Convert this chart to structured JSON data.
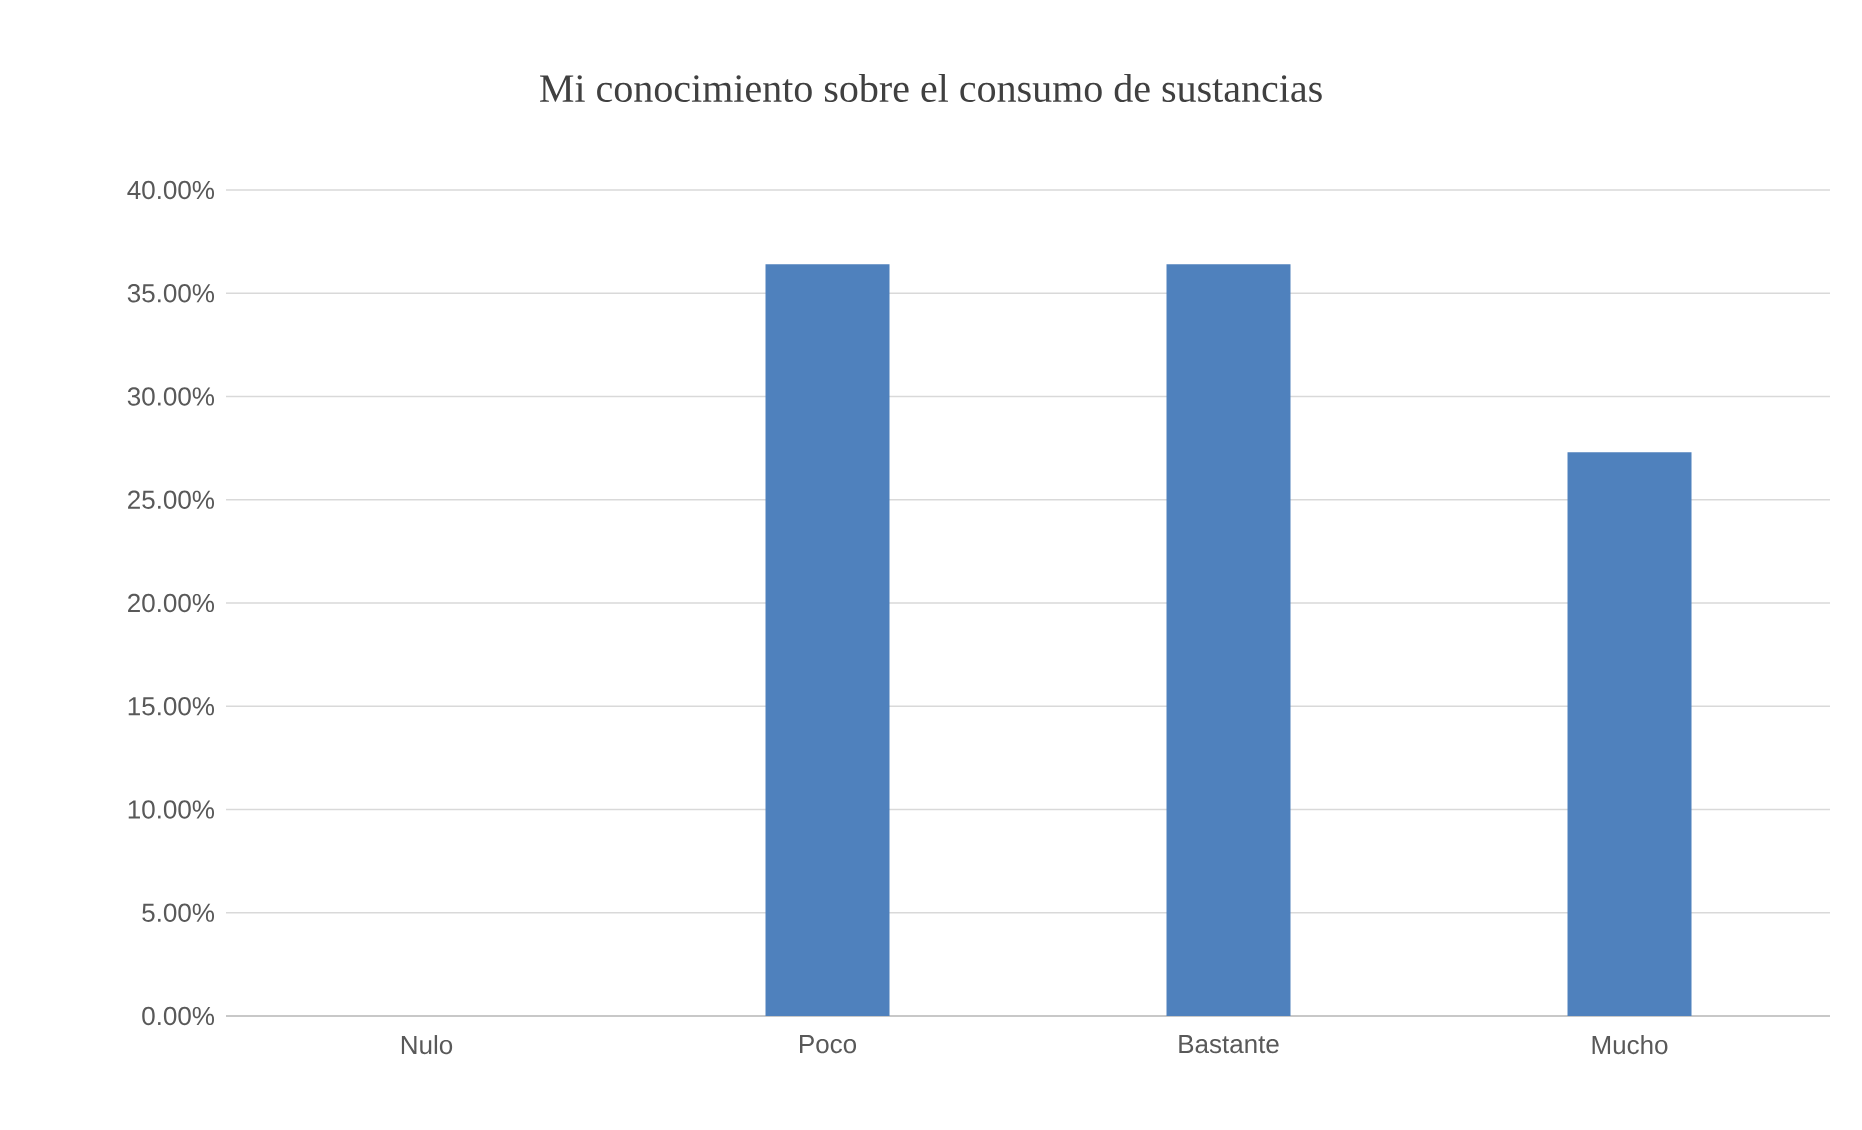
{
  "chart_data": {
    "type": "bar",
    "title": "Mi conocimiento sobre el consumo de sustancias",
    "categories": [
      "Nulo",
      "Poco",
      "Bastante",
      "Mucho"
    ],
    "values": [
      0,
      36.4,
      36.4,
      27.3
    ],
    "color": "#4f81bd",
    "ylim": [
      0,
      40
    ],
    "yticks": [
      {
        "value": 0,
        "label": "0.00%"
      },
      {
        "value": 5,
        "label": "5.00%"
      },
      {
        "value": 10,
        "label": "10.00%"
      },
      {
        "value": 15,
        "label": "15.00%"
      },
      {
        "value": 20,
        "label": "20.00%"
      },
      {
        "value": 25,
        "label": "25.00%"
      },
      {
        "value": 30,
        "label": "30.00%"
      },
      {
        "value": 35,
        "label": "35.00%"
      },
      {
        "value": 40,
        "label": "40.00%"
      }
    ],
    "grid": "y"
  }
}
